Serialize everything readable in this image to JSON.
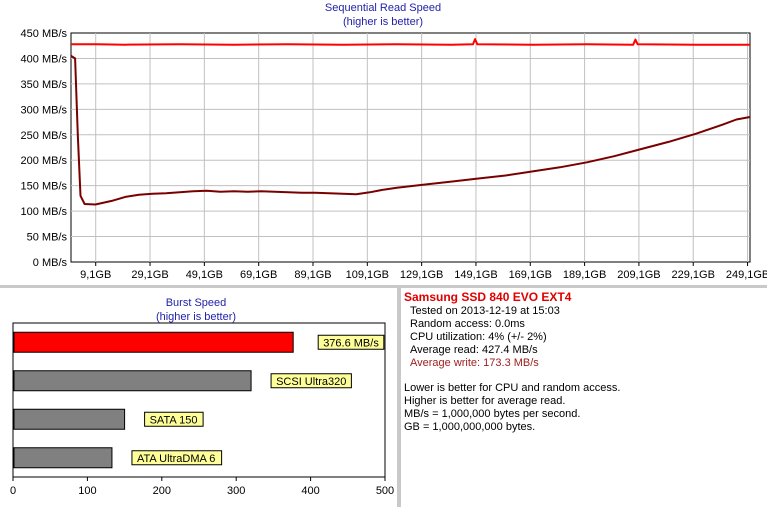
{
  "chart_data": [
    {
      "type": "line",
      "title": "Sequential Read Speed",
      "subtitle": "(higher is better)",
      "y_ticks": [
        "0 MB/s",
        "50 MB/s",
        "100 MB/s",
        "150 MB/s",
        "200 MB/s",
        "250 MB/s",
        "300 MB/s",
        "350 MB/s",
        "400 MB/s",
        "450 MB/s"
      ],
      "x_ticks": [
        "9,1GB",
        "29,1GB",
        "49,1GB",
        "69,1GB",
        "89,1GB",
        "109,1GB",
        "129,1GB",
        "149,1GB",
        "169,1GB",
        "189,1GB",
        "209,1GB",
        "229,1GB",
        "249,1GB"
      ],
      "xlim": [
        0,
        250
      ],
      "ylim": [
        0,
        450
      ],
      "grid": true,
      "series": [
        {
          "color": "#ff0000",
          "points": [
            [
              0,
              428
            ],
            [
              10,
              428
            ],
            [
              20,
              427
            ],
            [
              40,
              428
            ],
            [
              60,
              427
            ],
            [
              80,
              428
            ],
            [
              100,
              427
            ],
            [
              120,
              428
            ],
            [
              140,
              427
            ],
            [
              148,
              428
            ],
            [
              148.8,
              438
            ],
            [
              149.6,
              428
            ],
            [
              170,
              427
            ],
            [
              190,
              428
            ],
            [
              207,
              427
            ],
            [
              207.8,
              437
            ],
            [
              208.6,
              428
            ],
            [
              230,
              427
            ],
            [
              250,
              427
            ]
          ]
        },
        {
          "color": "#7a0000",
          "points": [
            [
              0,
              405
            ],
            [
              1.5,
              400
            ],
            [
              2.5,
              250
            ],
            [
              3.5,
              130
            ],
            [
              5,
              114
            ],
            [
              9,
              113
            ],
            [
              15,
              120
            ],
            [
              20,
              128
            ],
            [
              25,
              132
            ],
            [
              30,
              134
            ],
            [
              35,
              135
            ],
            [
              40,
              137
            ],
            [
              45,
              139
            ],
            [
              50,
              140
            ],
            [
              55,
              138
            ],
            [
              60,
              139
            ],
            [
              65,
              138
            ],
            [
              70,
              139
            ],
            [
              75,
              138
            ],
            [
              80,
              137
            ],
            [
              85,
              136
            ],
            [
              90,
              136
            ],
            [
              95,
              135
            ],
            [
              100,
              134
            ],
            [
              105,
              133
            ],
            [
              110,
              137
            ],
            [
              115,
              142
            ],
            [
              120,
              146
            ],
            [
              130,
              152
            ],
            [
              140,
              158
            ],
            [
              150,
              164
            ],
            [
              160,
              170
            ],
            [
              170,
              178
            ],
            [
              180,
              186
            ],
            [
              190,
              196
            ],
            [
              200,
              208
            ],
            [
              210,
              222
            ],
            [
              220,
              236
            ],
            [
              230,
              252
            ],
            [
              240,
              270
            ],
            [
              245,
              280
            ],
            [
              250,
              285
            ]
          ]
        }
      ]
    },
    {
      "type": "bar",
      "orientation": "horizontal",
      "title": "Burst Speed",
      "subtitle": "(higher is better)",
      "xlim": [
        0,
        500
      ],
      "x_ticks": [
        "0",
        "100",
        "200",
        "300",
        "400",
        "500"
      ],
      "categories": [
        "376.6 MB/s",
        "SCSI Ultra320",
        "SATA 150",
        "ATA UltraDMA 6"
      ],
      "values": [
        376.6,
        320,
        150,
        133
      ],
      "colors": [
        "#ff0000",
        "#808080",
        "#808080",
        "#808080"
      ],
      "label_bg": "#ffff99"
    }
  ],
  "info": {
    "title": "Samsung SSD 840 EVO EXT4",
    "lines": [
      "Tested on 2013-12-19 at 15:03",
      "Random access: 0.0ms",
      "CPU utilization: 4% (+/- 2%)",
      "Average read: 427.4 MB/s"
    ],
    "write_line": "Average write: 173.3 MB/s",
    "notes": [
      "Lower is better for CPU and random access.",
      "Higher is better for average read.",
      "MB/s = 1,000,000 bytes per second.",
      "GB = 1,000,000,000 bytes."
    ]
  }
}
